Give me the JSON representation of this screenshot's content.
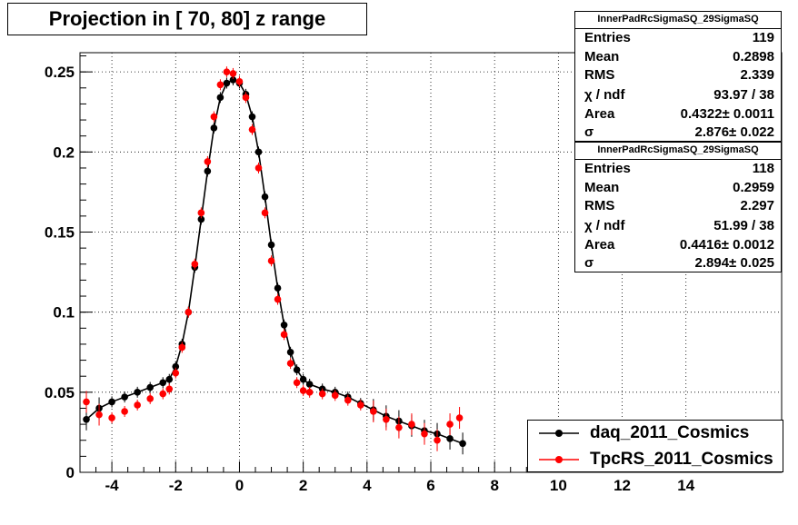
{
  "title": "Projection in [  70,  80] z range",
  "stats": [
    {
      "name": "InnerPadRcSigmaSQ_29SigmaSQ",
      "rows": [
        {
          "label": "Entries",
          "value": "119"
        },
        {
          "label": "Mean",
          "value": "0.2898"
        },
        {
          "label": "RMS",
          "value": "2.339"
        },
        {
          "label": "χ  / ndf",
          "value": "93.97 / 38"
        },
        {
          "label": "Area",
          "value": "0.4322± 0.0011"
        },
        {
          "label": "σ",
          "value": "2.876± 0.022"
        }
      ]
    },
    {
      "name": "InnerPadRcSigmaSQ_29SigmaSQ",
      "rows": [
        {
          "label": "Entries",
          "value": "118"
        },
        {
          "label": "Mean",
          "value": "0.2959"
        },
        {
          "label": "RMS",
          "value": "2.297"
        },
        {
          "label": "χ  / ndf",
          "value": "51.99 / 38"
        },
        {
          "label": "Area",
          "value": "0.4416± 0.0012"
        },
        {
          "label": "σ",
          "value": "2.894± 0.025"
        }
      ]
    }
  ],
  "chart_data": {
    "type": "scatter",
    "xlim": [
      -5,
      17
    ],
    "ylim": [
      0,
      0.262
    ],
    "grid": true,
    "legend_position": "bottom-right",
    "x_ticks": [
      "-4",
      "-2",
      "0",
      "2",
      "4",
      "6",
      "8",
      "10",
      "12",
      "14"
    ],
    "x_tick_values": [
      -4,
      -2,
      0,
      2,
      4,
      6,
      8,
      10,
      12,
      14
    ],
    "y_ticks": [
      "0",
      "0.05",
      "0.1",
      "0.15",
      "0.2",
      "0.25"
    ],
    "y_tick_values": [
      0,
      0.05,
      0.1,
      0.15,
      0.2,
      0.25
    ],
    "series": [
      {
        "name": "daq_2011_Cosmics",
        "color": "#000000",
        "x": [
          -4.8,
          -4.4,
          -4.0,
          -3.6,
          -3.2,
          -2.8,
          -2.4,
          -2.2,
          -2.0,
          -1.8,
          -1.6,
          -1.4,
          -1.2,
          -1.0,
          -0.8,
          -0.6,
          -0.4,
          -0.2,
          0.0,
          0.2,
          0.4,
          0.6,
          0.8,
          1.0,
          1.2,
          1.4,
          1.6,
          1.8,
          2.0,
          2.2,
          2.6,
          3.0,
          3.4,
          3.8,
          4.2,
          4.6,
          5.0,
          5.4,
          5.8,
          6.2,
          6.6,
          7.0
        ],
        "y": [
          0.033,
          0.04,
          0.044,
          0.047,
          0.05,
          0.053,
          0.056,
          0.058,
          0.066,
          0.08,
          0.1,
          0.128,
          0.158,
          0.188,
          0.215,
          0.234,
          0.243,
          0.245,
          0.243,
          0.236,
          0.222,
          0.2,
          0.172,
          0.142,
          0.115,
          0.092,
          0.075,
          0.064,
          0.058,
          0.055,
          0.052,
          0.05,
          0.047,
          0.043,
          0.039,
          0.035,
          0.032,
          0.029,
          0.026,
          0.024,
          0.021,
          0.018
        ]
      },
      {
        "name": "TpcRS_2011_Cosmics",
        "color": "#ff0000",
        "x": [
          -4.8,
          -4.4,
          -4.0,
          -3.6,
          -3.2,
          -2.8,
          -2.4,
          -2.2,
          -2.0,
          -1.8,
          -1.6,
          -1.4,
          -1.2,
          -1.0,
          -0.8,
          -0.6,
          -0.4,
          -0.2,
          0.0,
          0.2,
          0.4,
          0.6,
          0.8,
          1.0,
          1.2,
          1.4,
          1.6,
          1.8,
          2.0,
          2.2,
          2.6,
          3.0,
          3.4,
          3.8,
          4.2,
          4.6,
          5.0,
          5.4,
          5.8,
          6.2,
          6.6,
          6.9
        ],
        "y": [
          0.044,
          0.036,
          0.034,
          0.038,
          0.042,
          0.046,
          0.049,
          0.052,
          0.062,
          0.078,
          0.1,
          0.13,
          0.162,
          0.194,
          0.222,
          0.242,
          0.25,
          0.249,
          0.244,
          0.234,
          0.214,
          0.19,
          0.162,
          0.132,
          0.108,
          0.086,
          0.068,
          0.056,
          0.051,
          0.05,
          0.049,
          0.048,
          0.045,
          0.042,
          0.038,
          0.033,
          0.028,
          0.03,
          0.024,
          0.02,
          0.03,
          0.034
        ]
      }
    ]
  }
}
